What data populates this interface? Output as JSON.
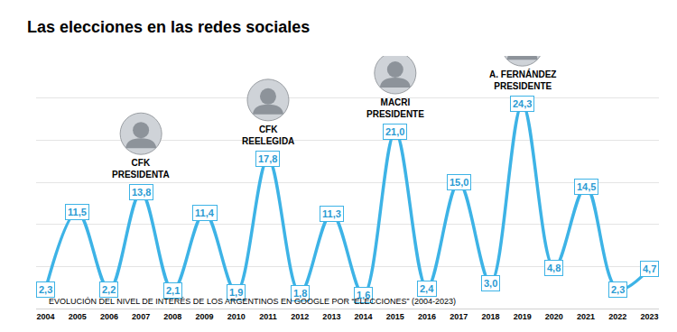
{
  "chart_data": {
    "type": "line",
    "title": "Las elecciones en las redes sociales",
    "subtitle": "EVOLUCIÓN DEL NIVEL DE INTERÉS DE LOS ARGENTINOS EN GOOGLE POR “ELECCIONES” (2004-2023)",
    "categories": [
      "2004",
      "2005",
      "2006",
      "2007",
      "2008",
      "2009",
      "2010",
      "2011",
      "2012",
      "2013",
      "2014",
      "2015",
      "2016",
      "2017",
      "2018",
      "2019",
      "2020",
      "2021",
      "2022",
      "2023"
    ],
    "values": [
      2.3,
      11.5,
      2.2,
      13.8,
      2.1,
      11.4,
      1.9,
      17.8,
      1.8,
      11.3,
      1.6,
      21.0,
      2.4,
      15.0,
      3.0,
      24.3,
      4.8,
      14.5,
      2.3,
      4.7
    ],
    "value_labels": [
      "2,3",
      "11,5",
      "2,2",
      "13,8",
      "2,1",
      "11,4",
      "1,9",
      "17,8",
      "1,8",
      "11,3",
      "1,6",
      "21,0",
      "2,4",
      "15,0",
      "3,0",
      "24,3",
      "4,8",
      "14,5",
      "2,3",
      "4,7"
    ],
    "color": "#3db3e6",
    "line_style": "smooth",
    "data_labels": true,
    "ylim": [
      0,
      30
    ],
    "yticks": [
      0,
      5,
      10,
      15,
      20,
      25,
      30
    ],
    "grid": true,
    "tick_labels": "x",
    "annotations": [
      {
        "category": "2007",
        "text": "CFK\nPRESIDENTA"
      },
      {
        "category": "2011",
        "text": "CFK\nREELEGIDA"
      },
      {
        "category": "2015",
        "text": "MACRI\nPRESIDENTE"
      },
      {
        "category": "2019",
        "text": "A. FERNÁNDEZ\nPRESIDENTE"
      }
    ]
  }
}
